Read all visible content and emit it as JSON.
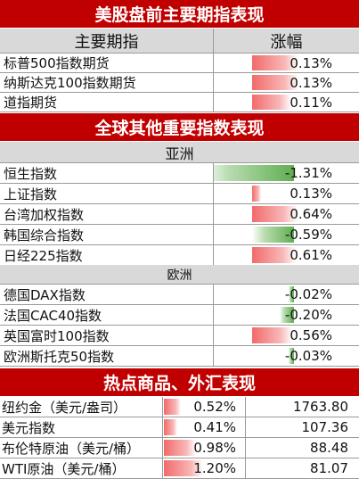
{
  "colors": {
    "header_red": "#c00000",
    "subheader_gray": "#d9d9d9",
    "pos_bar": "#f26a6a",
    "neg_bar": "#5fae50"
  },
  "section_us": {
    "title": "美股盘前主要期指表现",
    "col_name": "主要期指",
    "col_change": "涨幅",
    "rows": [
      {
        "name": "标普500指数期货",
        "change": "0.13%",
        "pct": 0.13
      },
      {
        "name": "纳斯达克100指数期货",
        "change": "0.13%",
        "pct": 0.13
      },
      {
        "name": "道指期货",
        "change": "0.11%",
        "pct": 0.11
      }
    ]
  },
  "section_global": {
    "title": "全球其他重要指数表现",
    "asia_label": "亚洲",
    "asia_rows": [
      {
        "name": "恒生指数",
        "change": "-1.31%",
        "pct": -1.31
      },
      {
        "name": "上证指数",
        "change": "0.13%",
        "pct": 0.13
      },
      {
        "name": "台湾加权指数",
        "change": "0.64%",
        "pct": 0.64
      },
      {
        "name": "韩国综合指数",
        "change": "-0.59%",
        "pct": -0.59
      },
      {
        "name": "日经225指数",
        "change": "0.61%",
        "pct": 0.61
      }
    ],
    "europe_label": "欧洲",
    "europe_rows": [
      {
        "name": "德国DAX指数",
        "change": "-0.02%",
        "pct": -0.02
      },
      {
        "name": "法国CAC40指数",
        "change": "-0.20%",
        "pct": -0.2
      },
      {
        "name": "英国富时100指数",
        "change": "0.56%",
        "pct": 0.56
      },
      {
        "name": "欧洲斯托克50指数",
        "change": "-0.03%",
        "pct": -0.03
      }
    ]
  },
  "section_commodities": {
    "title": "热点商品、外汇表现",
    "rows": [
      {
        "name": "纽约金（美元/盎司）",
        "change": "0.52%",
        "pct": 0.52,
        "price": "1763.80"
      },
      {
        "name": "美元指数",
        "change": "0.41%",
        "pct": 0.41,
        "price": "107.36"
      },
      {
        "name": "布伦特原油（美元/桶）",
        "change": "0.98%",
        "pct": 0.98,
        "price": "88.48"
      },
      {
        "name": "WTI原油（美元/桶）",
        "change": "1.20%",
        "pct": 1.2,
        "price": "81.07"
      }
    ]
  }
}
